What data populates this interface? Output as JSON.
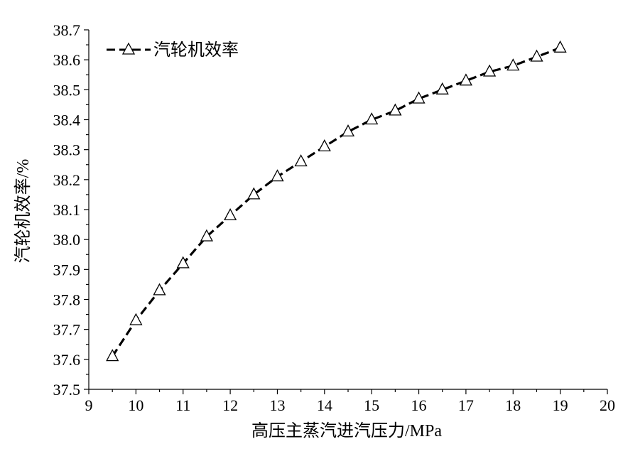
{
  "chart_data": {
    "type": "line",
    "title": "",
    "xlabel": "高压主蒸汽进汽压力/MPa",
    "ylabel": "汽轮机效率/%",
    "xlim": [
      9,
      20
    ],
    "ylim": [
      37.5,
      38.7
    ],
    "x_ticks": [
      9,
      10,
      11,
      12,
      13,
      14,
      15,
      16,
      17,
      18,
      19,
      20
    ],
    "y_ticks": [
      37.5,
      37.6,
      37.7,
      37.8,
      37.9,
      38.0,
      38.1,
      38.2,
      38.3,
      38.4,
      38.5,
      38.6,
      38.7
    ],
    "x_tick_labels": [
      "9",
      "10",
      "11",
      "12",
      "13",
      "14",
      "15",
      "16",
      "17",
      "18",
      "19",
      "20"
    ],
    "y_tick_labels": [
      "37.5",
      "37.6",
      "37.7",
      "37.8",
      "37.9",
      "38.0",
      "38.1",
      "38.2",
      "38.3",
      "38.4",
      "38.5",
      "38.6",
      "38.7"
    ],
    "grid": false,
    "legend_position": "top-left",
    "series": [
      {
        "name": "汽轮机效率",
        "line_style": "dashed",
        "marker": "open-triangle",
        "color": "#000000",
        "x": [
          9.5,
          10,
          10.5,
          11,
          11.5,
          12,
          12.5,
          13,
          13.5,
          14,
          14.5,
          15,
          15.5,
          16,
          16.5,
          17,
          17.5,
          18,
          18.5,
          19
        ],
        "values": [
          37.61,
          37.73,
          37.83,
          37.92,
          38.01,
          38.08,
          38.15,
          38.21,
          38.26,
          38.31,
          38.36,
          38.4,
          38.43,
          38.47,
          38.5,
          38.53,
          38.56,
          38.58,
          38.61,
          38.64
        ]
      }
    ]
  }
}
